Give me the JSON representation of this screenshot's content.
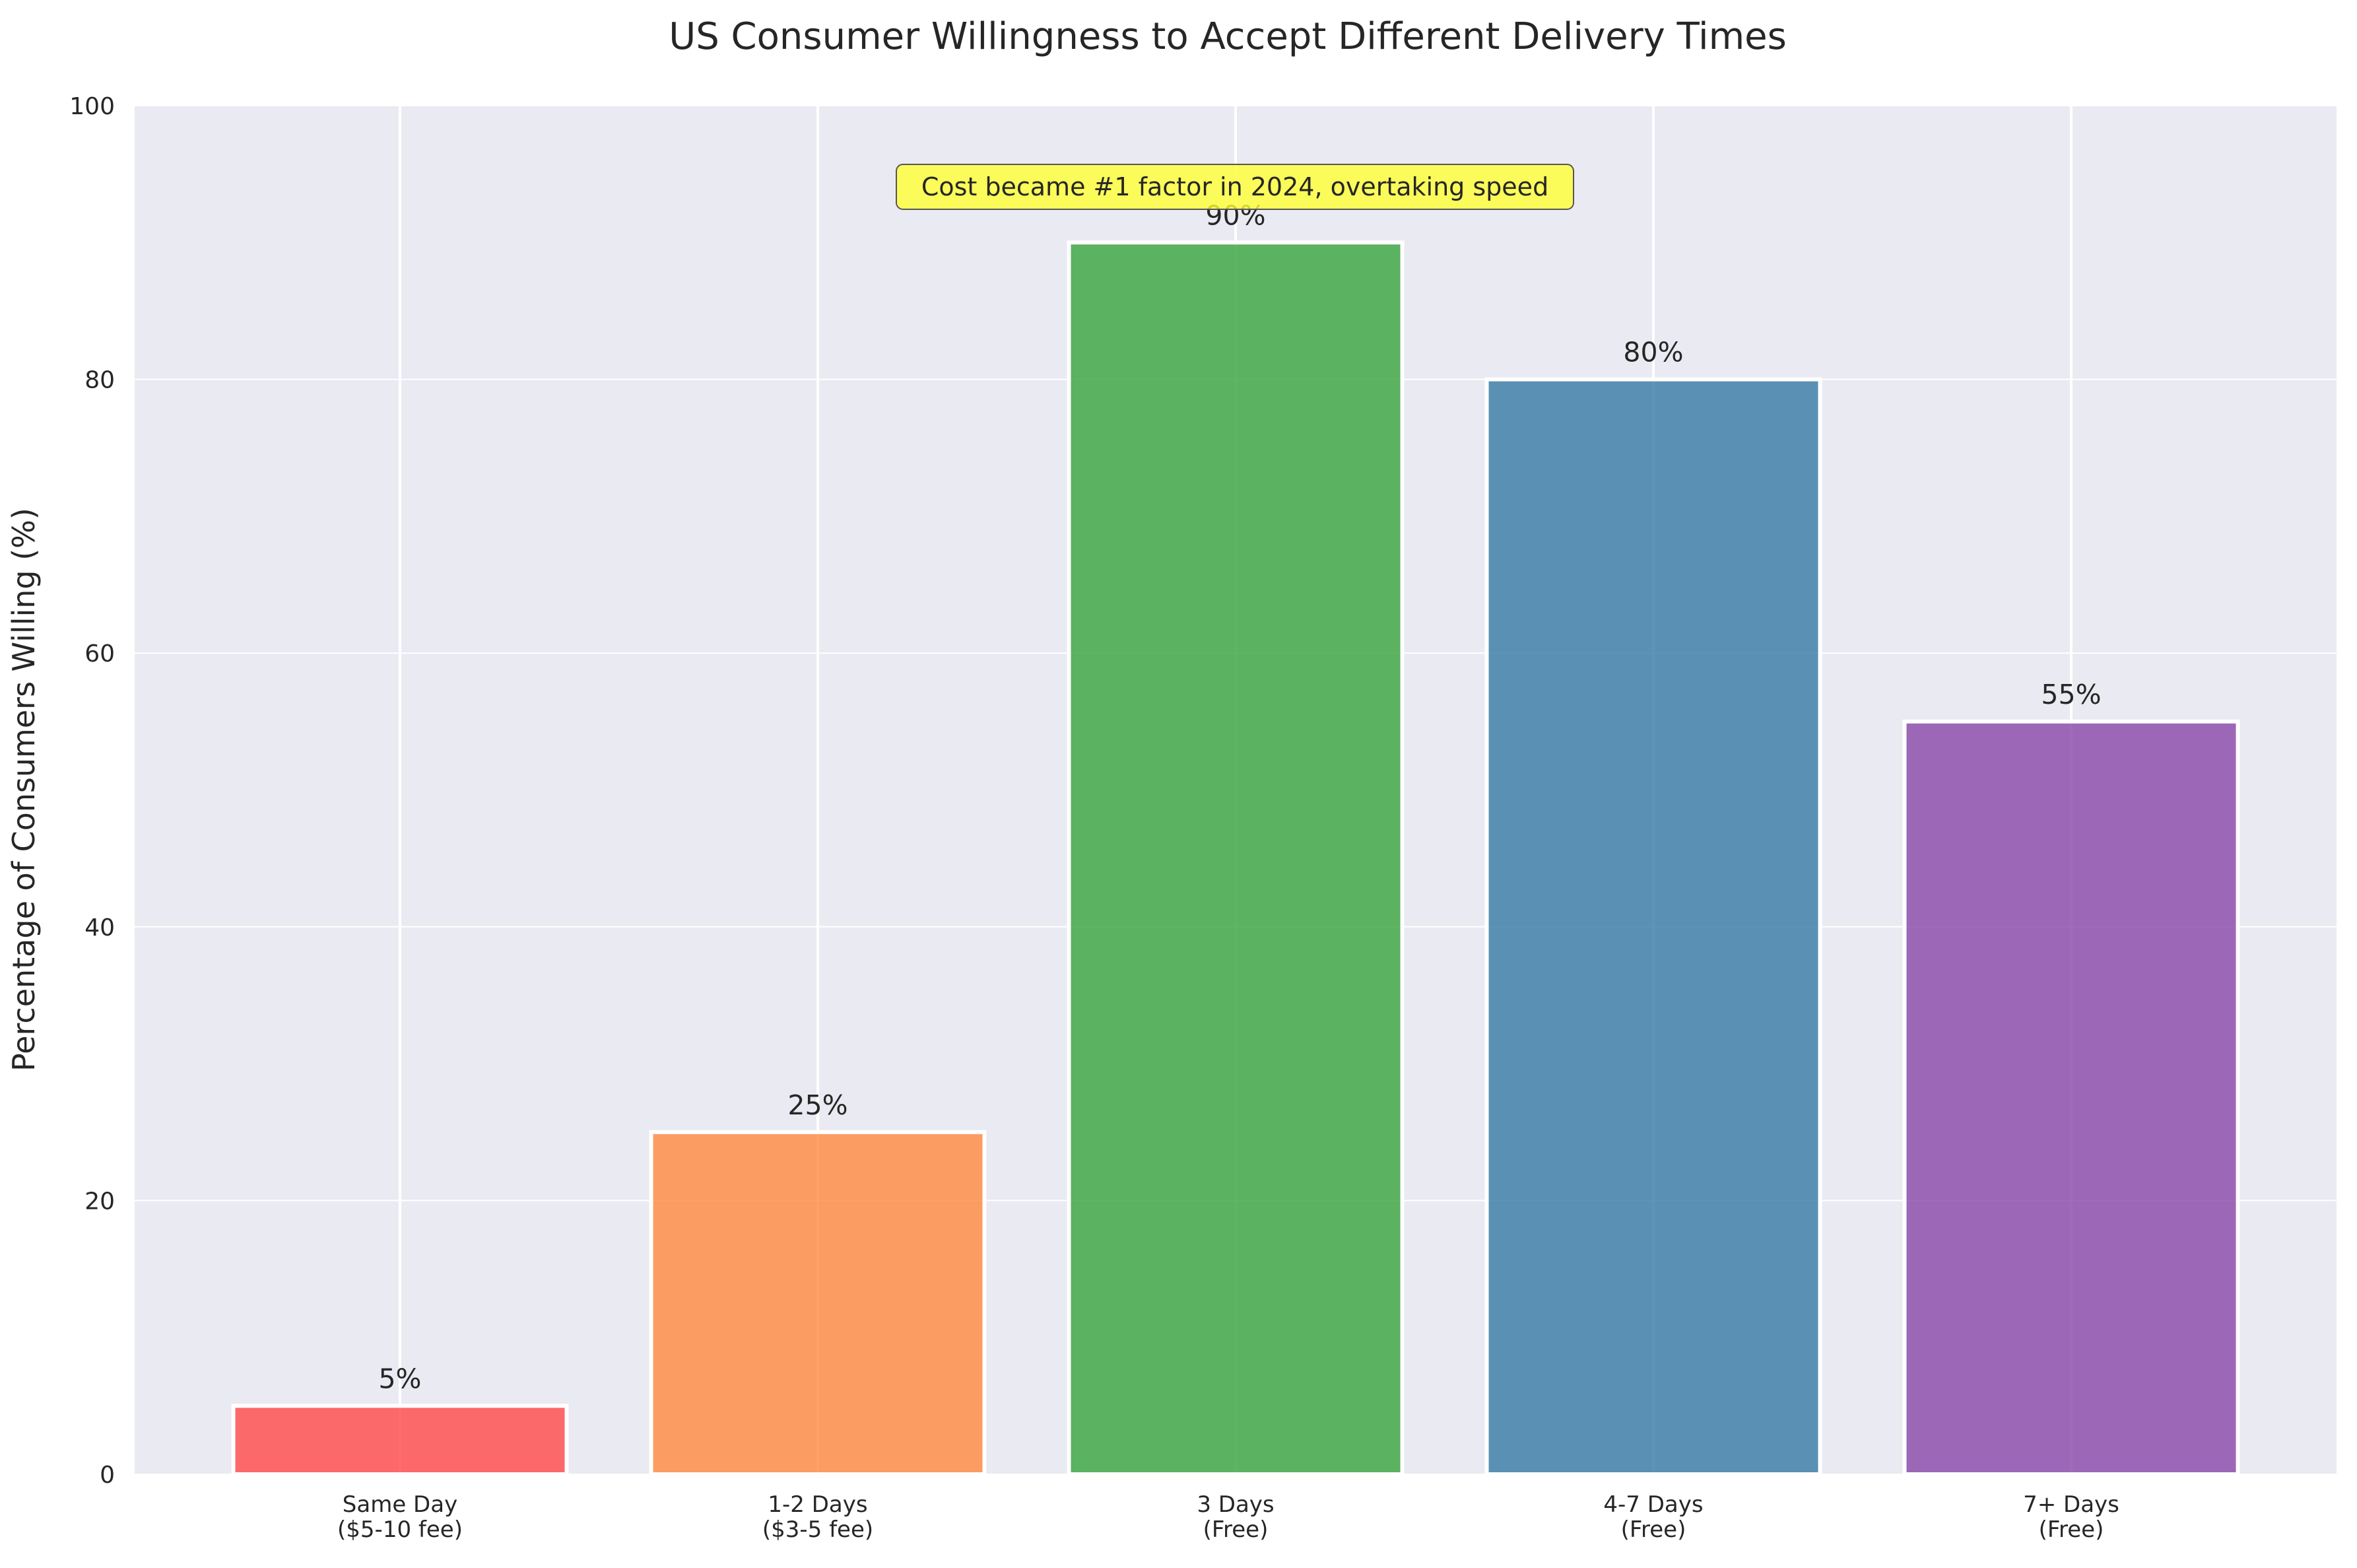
{
  "chart_data": {
    "type": "bar",
    "title": "US Consumer Willingness to Accept Different Delivery Times",
    "xlabel": "",
    "ylabel": "Percentage of Consumers Willing (%)",
    "ylim": [
      0,
      100
    ],
    "yticks": [
      0,
      20,
      40,
      60,
      80,
      100
    ],
    "grid": true,
    "categories": [
      [
        "Same Day",
        "($5-10 fee)"
      ],
      [
        "1-2 Days",
        "($3-5 fee)"
      ],
      [
        "3 Days",
        "(Free)"
      ],
      [
        "4-7 Days",
        "(Free)"
      ],
      [
        "7+ Days",
        "(Free)"
      ]
    ],
    "values": [
      5,
      25,
      90,
      80,
      55
    ],
    "value_labels": [
      "5%",
      "25%",
      "90%",
      "80%",
      "55%"
    ],
    "colors": [
      "#ff4d4d",
      "#ff8c42",
      "#3ca640",
      "#3a7ca5",
      "#8c4aab"
    ],
    "annotation": {
      "text": "Cost became #1 factor in 2024, overtaking speed",
      "box_color": "#ffff33"
    }
  }
}
